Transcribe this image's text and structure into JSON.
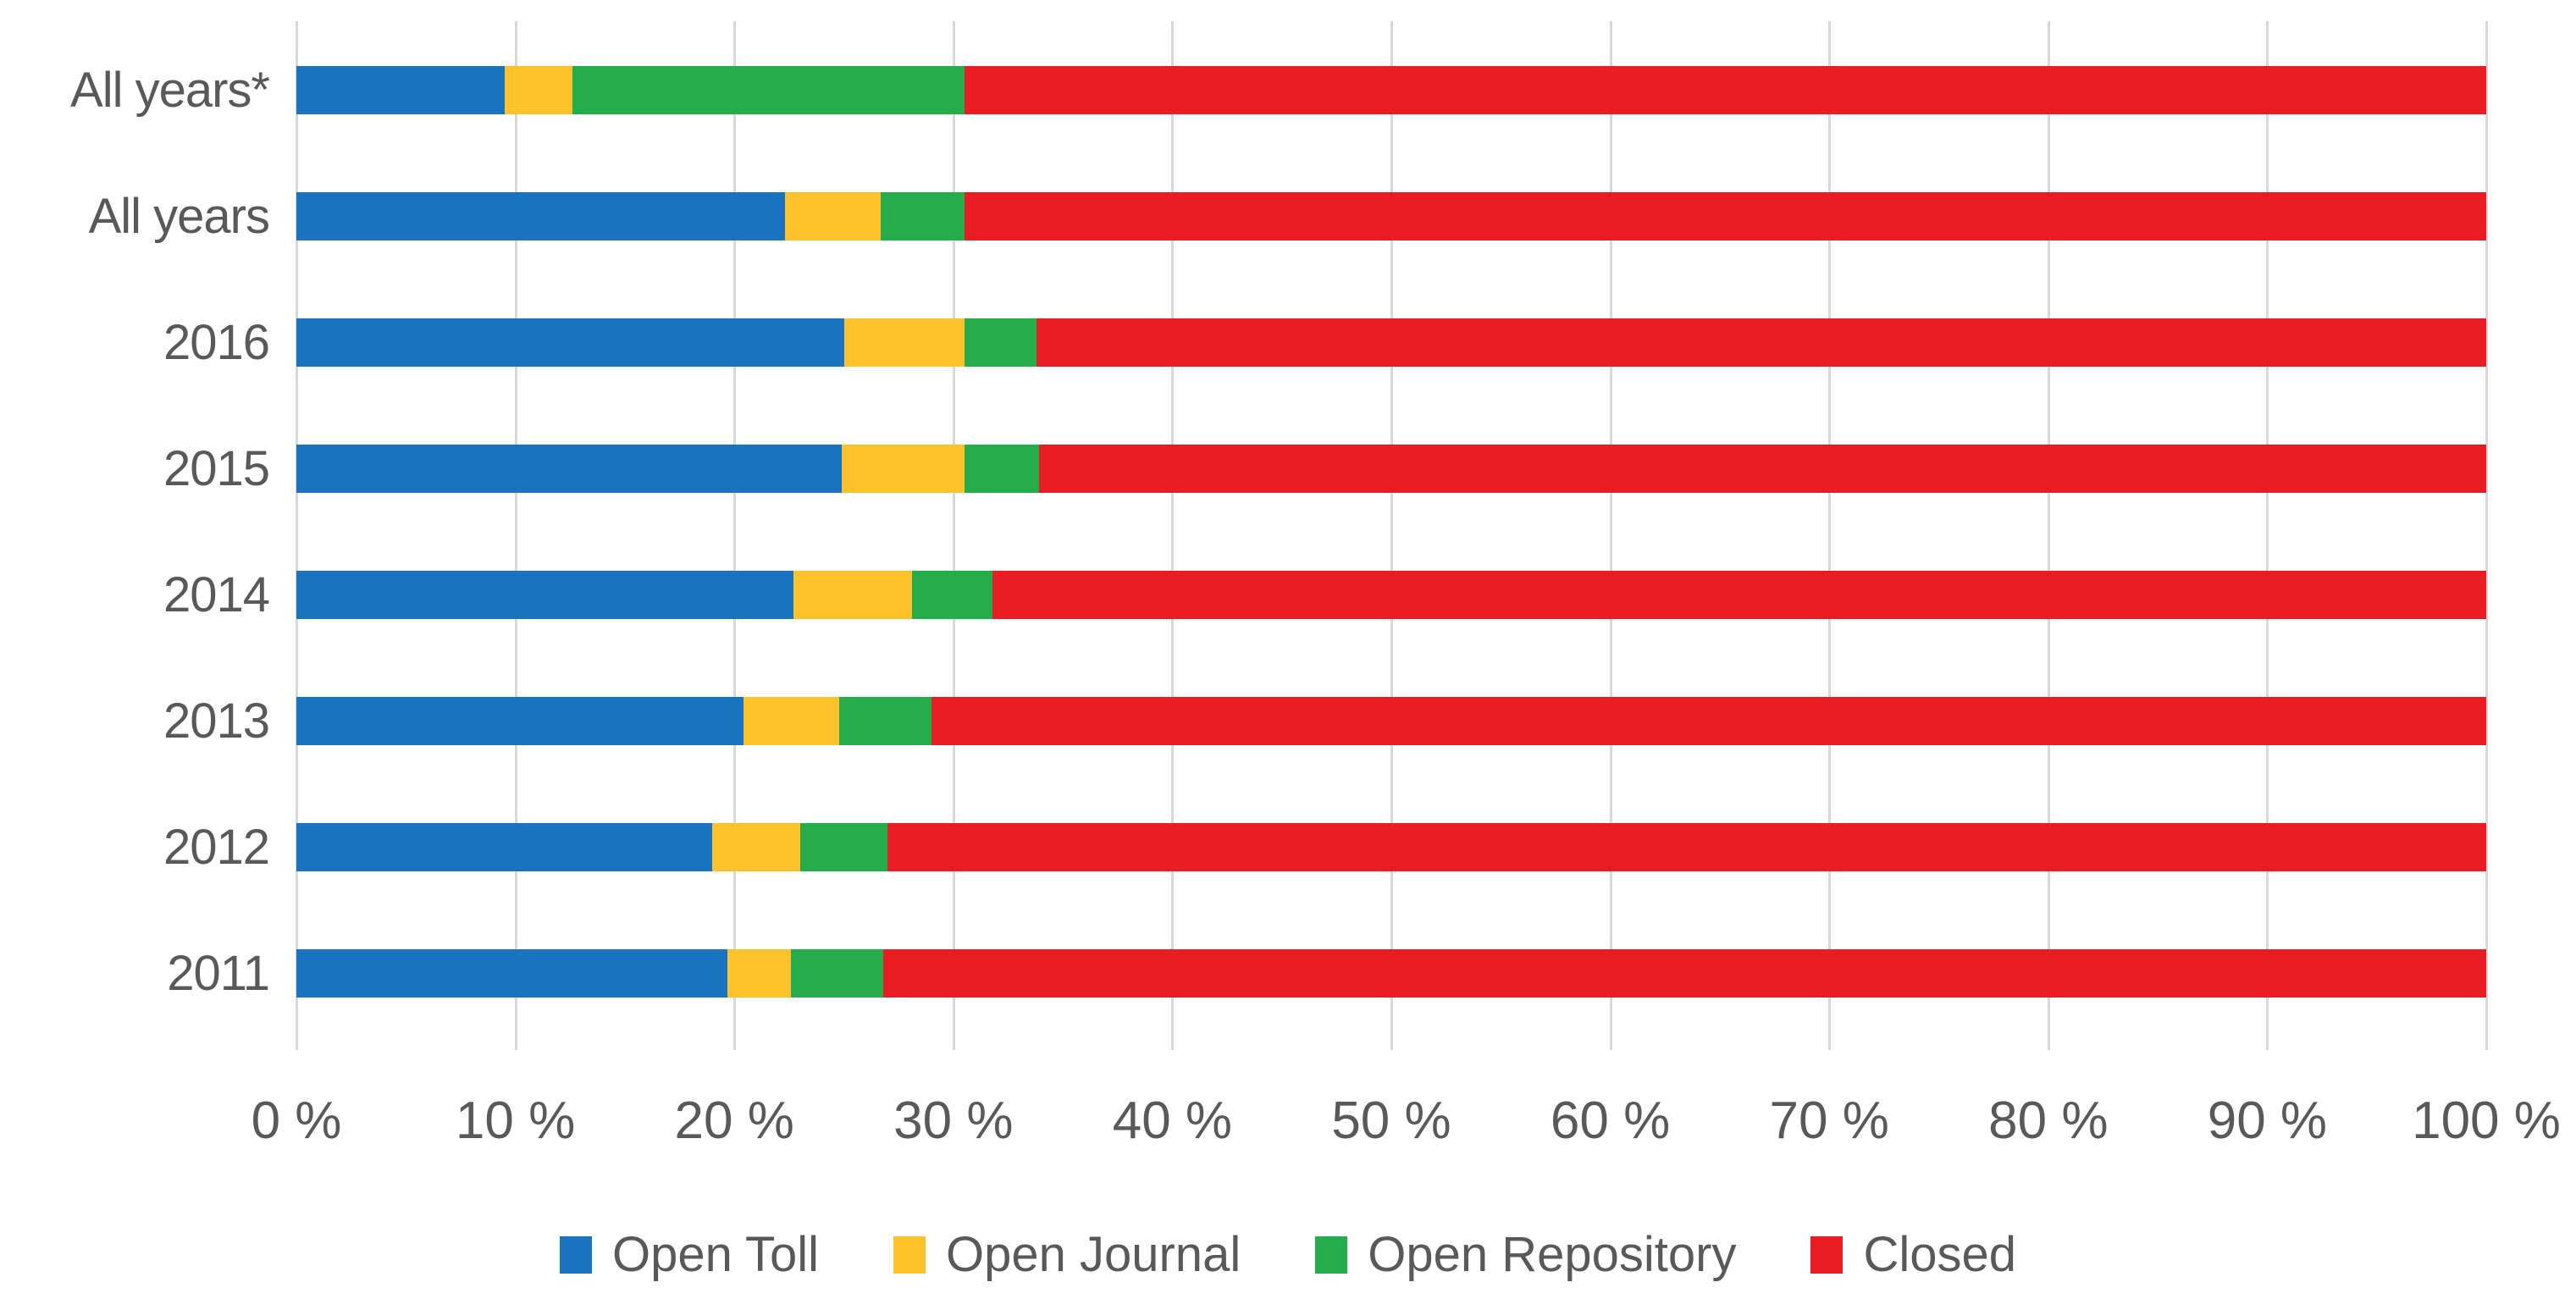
{
  "chart_data": {
    "type": "bar",
    "orientation": "horizontal",
    "stacked": true,
    "unit": "%",
    "title": "",
    "categories": [
      "All years*",
      "All years",
      "2016",
      "2015",
      "2014",
      "2013",
      "2012",
      "2011"
    ],
    "series": [
      {
        "name": "Open Toll",
        "color": "#1B72BE",
        "values": [
          9.5,
          22.3,
          25.0,
          24.9,
          22.7,
          20.4,
          19.0,
          19.7
        ]
      },
      {
        "name": "Open Journal",
        "color": "#FDC22C",
        "values": [
          3.1,
          4.4,
          5.5,
          5.6,
          5.4,
          4.4,
          4.0,
          2.9
        ]
      },
      {
        "name": "Open Repository",
        "color": "#25AC4B",
        "values": [
          17.9,
          3.8,
          3.3,
          3.4,
          3.7,
          4.2,
          4.0,
          4.2
        ]
      },
      {
        "name": "Closed",
        "color": "#EA1C23",
        "values": [
          69.5,
          69.5,
          66.2,
          66.1,
          68.2,
          71.0,
          73.0,
          73.2
        ]
      }
    ],
    "x_axis": {
      "min": 0,
      "max": 100,
      "tick_step": 10,
      "tick_labels": [
        "0 %",
        "10 %",
        "20 %",
        "30 %",
        "40 %",
        "50 %",
        "60 %",
        "70 %",
        "80 %",
        "90 %",
        "100 %"
      ]
    },
    "legend": {
      "position": "bottom",
      "items": [
        "Open Toll",
        "Open Journal",
        "Open Repository",
        "Closed"
      ]
    },
    "grid": {
      "vertical": true,
      "horizontal": false,
      "color": "#D9D9D9"
    },
    "styles": {
      "text_color": "#58595B",
      "background": "#FFFFFF"
    }
  }
}
